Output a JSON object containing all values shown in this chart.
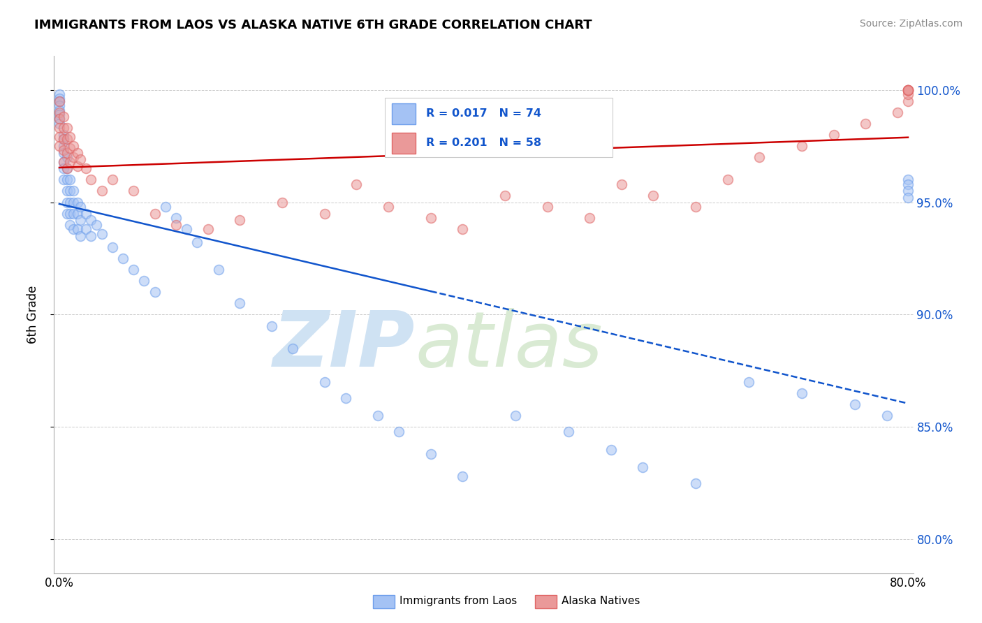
{
  "title": "IMMIGRANTS FROM LAOS VS ALASKA NATIVE 6TH GRADE CORRELATION CHART",
  "source": "Source: ZipAtlas.com",
  "ylabel": "6th Grade",
  "yticks": [
    "80.0%",
    "85.0%",
    "90.0%",
    "95.0%",
    "100.0%"
  ],
  "ytick_vals": [
    0.8,
    0.85,
    0.9,
    0.95,
    1.0
  ],
  "xlim": [
    -0.005,
    0.805
  ],
  "ylim": [
    0.785,
    1.015
  ],
  "legend_blue_label": "Immigrants from Laos",
  "legend_pink_label": "Alaska Natives",
  "R_blue": "0.017",
  "N_blue": "74",
  "R_pink": "0.201",
  "N_pink": "58",
  "blue_color": "#a4c2f4",
  "pink_color": "#ea9999",
  "blue_edge_color": "#6d9eeb",
  "pink_edge_color": "#e06666",
  "blue_line_color": "#1155cc",
  "pink_line_color": "#cc0000",
  "right_tick_color": "#1155cc",
  "watermark_zip_color": "#cfe2f3",
  "watermark_atlas_color": "#d9ead3",
  "blue_scatter_x": [
    0.0,
    0.0,
    0.0,
    0.0,
    0.0,
    0.0,
    0.0,
    0.0,
    0.004,
    0.004,
    0.004,
    0.004,
    0.004,
    0.004,
    0.004,
    0.007,
    0.007,
    0.007,
    0.007,
    0.007,
    0.007,
    0.01,
    0.01,
    0.01,
    0.01,
    0.01,
    0.013,
    0.013,
    0.013,
    0.013,
    0.017,
    0.017,
    0.017,
    0.02,
    0.02,
    0.02,
    0.025,
    0.025,
    0.03,
    0.03,
    0.035,
    0.04,
    0.05,
    0.06,
    0.07,
    0.08,
    0.09,
    0.1,
    0.11,
    0.12,
    0.13,
    0.15,
    0.17,
    0.2,
    0.22,
    0.25,
    0.27,
    0.3,
    0.32,
    0.35,
    0.38,
    0.43,
    0.48,
    0.52,
    0.55,
    0.6,
    0.65,
    0.7,
    0.75,
    0.78,
    0.8,
    0.8,
    0.8,
    0.8
  ],
  "blue_scatter_y": [
    0.998,
    0.996,
    0.995,
    0.993,
    0.991,
    0.989,
    0.987,
    0.985,
    0.98,
    0.978,
    0.975,
    0.972,
    0.968,
    0.965,
    0.96,
    0.97,
    0.965,
    0.96,
    0.955,
    0.95,
    0.945,
    0.96,
    0.955,
    0.95,
    0.945,
    0.94,
    0.955,
    0.95,
    0.945,
    0.938,
    0.95,
    0.945,
    0.938,
    0.948,
    0.942,
    0.935,
    0.945,
    0.938,
    0.942,
    0.935,
    0.94,
    0.936,
    0.93,
    0.925,
    0.92,
    0.915,
    0.91,
    0.948,
    0.943,
    0.938,
    0.932,
    0.92,
    0.905,
    0.895,
    0.885,
    0.87,
    0.863,
    0.855,
    0.848,
    0.838,
    0.828,
    0.855,
    0.848,
    0.84,
    0.832,
    0.825,
    0.87,
    0.865,
    0.86,
    0.855,
    0.96,
    0.958,
    0.955,
    0.952
  ],
  "pink_scatter_x": [
    0.0,
    0.0,
    0.0,
    0.0,
    0.0,
    0.0,
    0.004,
    0.004,
    0.004,
    0.004,
    0.004,
    0.007,
    0.007,
    0.007,
    0.007,
    0.01,
    0.01,
    0.01,
    0.013,
    0.013,
    0.017,
    0.017,
    0.02,
    0.025,
    0.03,
    0.04,
    0.05,
    0.07,
    0.09,
    0.11,
    0.14,
    0.17,
    0.21,
    0.25,
    0.28,
    0.31,
    0.35,
    0.38,
    0.42,
    0.46,
    0.5,
    0.53,
    0.56,
    0.6,
    0.63,
    0.66,
    0.7,
    0.73,
    0.76,
    0.79,
    0.8,
    0.8,
    0.8,
    0.8,
    0.8,
    0.8,
    0.8,
    0.8
  ],
  "pink_scatter_y": [
    0.995,
    0.99,
    0.987,
    0.983,
    0.979,
    0.975,
    0.988,
    0.983,
    0.978,
    0.973,
    0.968,
    0.983,
    0.978,
    0.972,
    0.965,
    0.979,
    0.974,
    0.968,
    0.975,
    0.97,
    0.972,
    0.966,
    0.969,
    0.965,
    0.96,
    0.955,
    0.96,
    0.955,
    0.945,
    0.94,
    0.938,
    0.942,
    0.95,
    0.945,
    0.958,
    0.948,
    0.943,
    0.938,
    0.953,
    0.948,
    0.943,
    0.958,
    0.953,
    0.948,
    0.96,
    0.97,
    0.975,
    0.98,
    0.985,
    0.99,
    0.995,
    0.998,
    1.0,
    1.0,
    1.0,
    1.0,
    1.0,
    1.0
  ]
}
